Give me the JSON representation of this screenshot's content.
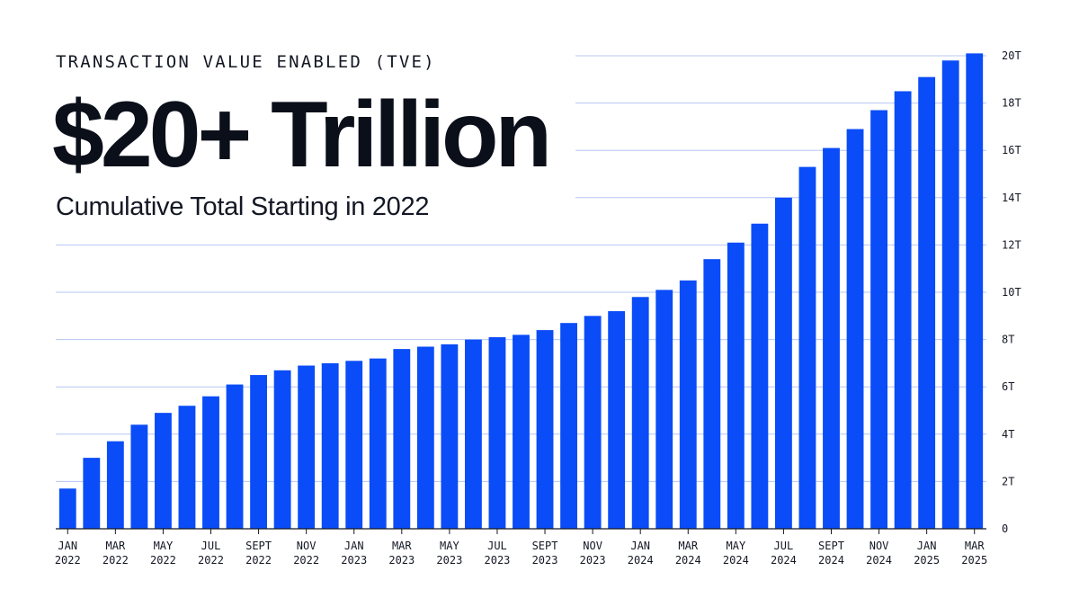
{
  "header": {
    "eyebrow": "TRANSACTION VALUE ENABLED (TVE)",
    "headline": "$20+ Trillion",
    "subtitle": "Cumulative Total Starting in 2022"
  },
  "colors": {
    "bar": "#0a4cf7",
    "grid": "#b7c6f5",
    "axis": "#141824"
  },
  "chart_data": {
    "type": "bar",
    "title": "TRANSACTION VALUE ENABLED (TVE)",
    "subtitle": "Cumulative Total Starting in 2022",
    "ylim": [
      0,
      20
    ],
    "grid": true,
    "yaxis_position": "right",
    "y_ticks": [
      {
        "value": 0,
        "label": "0"
      },
      {
        "value": 2,
        "label": "2T"
      },
      {
        "value": 4,
        "label": "4T"
      },
      {
        "value": 6,
        "label": "6T"
      },
      {
        "value": 8,
        "label": "8T"
      },
      {
        "value": 10,
        "label": "10T"
      },
      {
        "value": 12,
        "label": "12T"
      },
      {
        "value": 14,
        "label": "14T"
      },
      {
        "value": 16,
        "label": "16T"
      },
      {
        "value": 18,
        "label": "18T"
      },
      {
        "value": 20,
        "label": "20T"
      }
    ],
    "categories": [
      "Jan 2022",
      "Feb 2022",
      "Mar 2022",
      "Apr 2022",
      "May 2022",
      "Jun 2022",
      "Jul 2022",
      "Aug 2022",
      "Sep 2022",
      "Oct 2022",
      "Nov 2022",
      "Dec 2022",
      "Jan 2023",
      "Feb 2023",
      "Mar 2023",
      "Apr 2023",
      "May 2023",
      "Jun 2023",
      "Jul 2023",
      "Aug 2023",
      "Sep 2023",
      "Oct 2023",
      "Nov 2023",
      "Dec 2023",
      "Jan 2024",
      "Feb 2024",
      "Mar 2024",
      "Apr 2024",
      "May 2024",
      "Jun 2024",
      "Jul 2024",
      "Aug 2024",
      "Sep 2024",
      "Oct 2024",
      "Nov 2024",
      "Dec 2024",
      "Jan 2025",
      "Feb 2025",
      "Mar 2025"
    ],
    "values": [
      1.7,
      3.0,
      3.7,
      4.4,
      4.9,
      5.2,
      5.6,
      6.1,
      6.5,
      6.7,
      6.9,
      7.0,
      7.1,
      7.2,
      7.6,
      7.7,
      7.8,
      8.0,
      8.1,
      8.2,
      8.4,
      8.7,
      9.0,
      9.2,
      9.8,
      10.1,
      10.5,
      11.4,
      12.1,
      12.9,
      14.0,
      15.3,
      16.1,
      16.9,
      17.7,
      18.5,
      19.1,
      19.8,
      20.1
    ],
    "x_tick_labels": [
      {
        "index": 0,
        "line1": "JAN",
        "line2": "2022"
      },
      {
        "index": 2,
        "line1": "MAR",
        "line2": "2022"
      },
      {
        "index": 4,
        "line1": "MAY",
        "line2": "2022"
      },
      {
        "index": 6,
        "line1": "JUL",
        "line2": "2022"
      },
      {
        "index": 8,
        "line1": "SEPT",
        "line2": "2022"
      },
      {
        "index": 10,
        "line1": "NOV",
        "line2": "2022"
      },
      {
        "index": 12,
        "line1": "JAN",
        "line2": "2023"
      },
      {
        "index": 14,
        "line1": "MAR",
        "line2": "2023"
      },
      {
        "index": 16,
        "line1": "MAY",
        "line2": "2023"
      },
      {
        "index": 18,
        "line1": "JUL",
        "line2": "2023"
      },
      {
        "index": 20,
        "line1": "SEPT",
        "line2": "2023"
      },
      {
        "index": 22,
        "line1": "NOV",
        "line2": "2023"
      },
      {
        "index": 24,
        "line1": "JAN",
        "line2": "2024"
      },
      {
        "index": 26,
        "line1": "MAR",
        "line2": "2024"
      },
      {
        "index": 28,
        "line1": "MAY",
        "line2": "2024"
      },
      {
        "index": 30,
        "line1": "JUL",
        "line2": "2024"
      },
      {
        "index": 32,
        "line1": "SEPT",
        "line2": "2024"
      },
      {
        "index": 34,
        "line1": "NOV",
        "line2": "2024"
      },
      {
        "index": 36,
        "line1": "JAN",
        "line2": "2025"
      },
      {
        "index": 38,
        "line1": "MAR",
        "line2": "2025"
      }
    ]
  }
}
